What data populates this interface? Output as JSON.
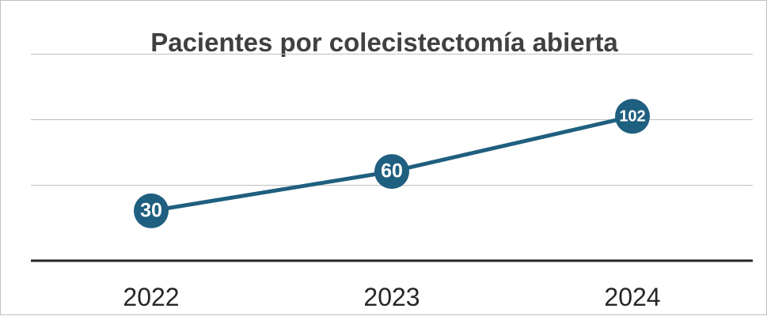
{
  "chart_data": {
    "type": "line",
    "title": "Pacientes por colecistectomía abierta",
    "xlabel": "",
    "ylabel": "",
    "categories": [
      "2022",
      "2023",
      "2024"
    ],
    "series": [
      {
        "values": [
          30,
          60,
          102
        ],
        "data_labels": [
          "30",
          "60",
          "102"
        ]
      }
    ],
    "ylim": [
      -8,
      160
    ],
    "gridlines": [
      50,
      100,
      150
    ],
    "grid": true,
    "legend": "none",
    "y_axis_labels_shown": false,
    "colors": {
      "line": "#1f5f80",
      "marker": "#1f5f80",
      "gridline": "#bfbfbf",
      "baseline": "#262626",
      "title": "#404040",
      "tick_label": "#262626",
      "data_label_text": "#ffffff"
    }
  }
}
